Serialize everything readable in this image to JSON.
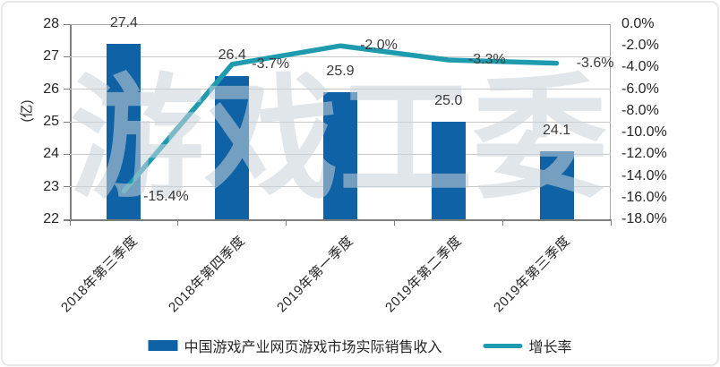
{
  "watermark": "游戏工委",
  "chart_data": {
    "type": "bar+line combo",
    "title": "",
    "categories": [
      "2018年第三季度",
      "2018年第四季度",
      "2019年第一季度",
      "2019年第二季度",
      "2019年第三季度"
    ],
    "series": [
      {
        "name": "中国游戏产业网页游戏市场实际销售收入",
        "type": "bar",
        "axis": "left",
        "color": "#0f62a5",
        "values": [
          27.4,
          26.4,
          25.9,
          25.0,
          24.1
        ],
        "labels": [
          "27.4",
          "26.4",
          "25.9",
          "25.0",
          "24.1"
        ]
      },
      {
        "name": "增长率",
        "type": "line",
        "axis": "right",
        "color": "#1f9bb0",
        "values": [
          -15.4,
          -3.7,
          -2.0,
          -3.3,
          -3.6
        ],
        "labels": [
          "-15.4%",
          "-3.7%",
          "-2.0%",
          "-3.3%",
          "-3.6%"
        ]
      }
    ],
    "left_axis": {
      "label": "(亿)",
      "min": 22,
      "max": 28,
      "step": 1,
      "ticks": [
        "28",
        "27",
        "26",
        "25",
        "24",
        "23",
        "22"
      ]
    },
    "right_axis": {
      "min": -18,
      "max": 0,
      "step": 2,
      "ticks": [
        "0.0%",
        "-2.0%",
        "-4.0%",
        "-6.0%",
        "-8.0%",
        "-10.0%",
        "-12.0%",
        "-14.0%",
        "-16.0%",
        "-18.0%"
      ]
    },
    "grid": true,
    "legend_position": "bottom"
  }
}
